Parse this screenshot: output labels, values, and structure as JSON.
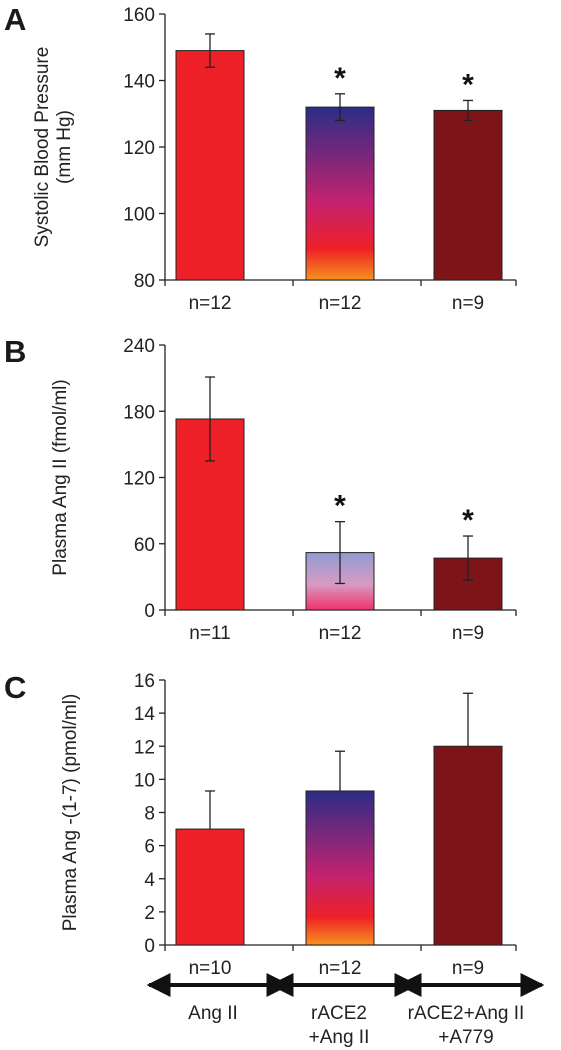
{
  "colors": {
    "ang2": "#ee2027",
    "ace2_top": "#2b2d86",
    "ace2_mid": "#c4226f",
    "ace2_red": "#ee2027",
    "ace2_bottom": "#f7931e",
    "ace2_light_top": "#8f9bd1",
    "ace2_light_bottom": "#f0326b",
    "a779": "#7d1418",
    "axis": "#222222"
  },
  "groups": [
    {
      "lines": [
        "Ang II"
      ]
    },
    {
      "lines": [
        "rACE2",
        "+Ang II"
      ]
    },
    {
      "lines": [
        "rACE2+Ang II",
        "+A779"
      ]
    }
  ],
  "chart_data": [
    {
      "type": "bar",
      "panel_label": "A",
      "ylabel": [
        "Systolic Blood Pressure",
        "(mm Hg)"
      ],
      "ylim": [
        80,
        160
      ],
      "yticks": [
        80,
        100,
        120,
        140,
        160
      ],
      "categories": [
        "n=12",
        "n=12",
        "n=9"
      ],
      "values": [
        149,
        132,
        131
      ],
      "errors": [
        5,
        4,
        3
      ],
      "significant": [
        "",
        "*",
        "*"
      ],
      "fills": [
        "ang2",
        "grad-dark",
        "a779"
      ]
    },
    {
      "type": "bar",
      "panel_label": "B",
      "ylabel": [
        "Plasma Ang II (fmol/ml)"
      ],
      "ylim": [
        0,
        240
      ],
      "yticks": [
        0,
        60,
        120,
        180,
        240
      ],
      "categories": [
        "n=11",
        "n=12",
        "n=9"
      ],
      "values": [
        173,
        52,
        47
      ],
      "errors": [
        38,
        28,
        20
      ],
      "significant": [
        "",
        "*",
        "*"
      ],
      "fills": [
        "ang2",
        "grad-light",
        "a779"
      ]
    },
    {
      "type": "bar",
      "panel_label": "C",
      "ylabel": [
        "Plasma Ang -(1-7) (pmol/ml)"
      ],
      "ylim": [
        0,
        16
      ],
      "yticks": [
        0,
        2,
        4,
        6,
        8,
        10,
        12,
        14,
        16
      ],
      "categories": [
        "n=10",
        "n=12",
        "n=9"
      ],
      "values": [
        7.0,
        9.3,
        12.0
      ],
      "errors": [
        2.3,
        2.4,
        3.2
      ],
      "significant": [
        "",
        "",
        ""
      ],
      "fills": [
        "ang2",
        "grad-dark",
        "a779"
      ]
    }
  ]
}
